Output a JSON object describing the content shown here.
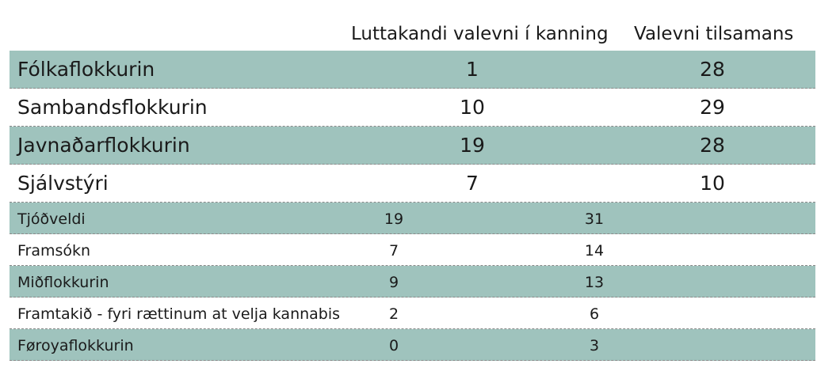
{
  "header": {
    "col1": "Luttakandi valevni í kanning",
    "col2": "Valevni tilsamans"
  },
  "rows": [
    {
      "name": "Fólkaflokkurin",
      "a": "1",
      "b": "28"
    },
    {
      "name": "Sambandsflokkurin",
      "a": "10",
      "b": "29"
    },
    {
      "name": "Javnaðarflokkurin",
      "a": "19",
      "b": "28"
    },
    {
      "name": "Sjálvstýri",
      "a": "7",
      "b": "10"
    },
    {
      "name": "Tjóðveldi",
      "a": "19",
      "b": "31"
    },
    {
      "name": "Framsókn",
      "a": "7",
      "b": "14"
    },
    {
      "name": "Miðflokkurin",
      "a": "9",
      "b": "13"
    },
    {
      "name": "Framtakið - fyri rættinum at velja kannabis",
      "a": "2",
      "b": "6"
    },
    {
      "name": "Føroyaflokkurin",
      "a": "0",
      "b": "3"
    }
  ],
  "colors": {
    "row_shade": "#9fc3bd",
    "divider": "#8a8a8a"
  }
}
